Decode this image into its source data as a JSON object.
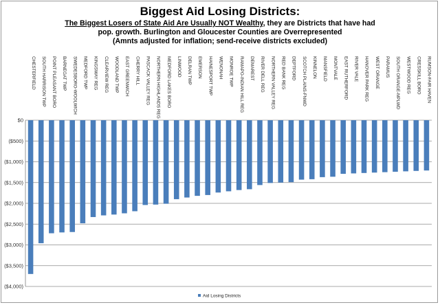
{
  "chart_data": {
    "type": "bar",
    "title": "Biggest Aid Losing Districts:",
    "subtitle_lines": [
      {
        "underlined": "The Biggest Losers of State Aid Are Usually NOT Wealthy",
        "rest": ", they are Districts that have had"
      },
      {
        "underlined": "",
        "rest": "pop. growth. Burlington and Gloucester Counties are Overrepresented"
      },
      {
        "underlined": "",
        "rest": "(Amnts adjusted for inflation; send-receive districts excluded)"
      }
    ],
    "categories": [
      "CHESTERFIELD",
      "SOUTH HARRISON TWP",
      "POINT PLEASANT BORO",
      "BARNEGAT TWP",
      "SWEDESBORO-WOOLWICH",
      "MEDFORD TWP",
      "KINGSWAY REG",
      "CLEARVIEW REG",
      "WOODLAND TWP",
      "EAST GREENWICH",
      "CHERRY HILL",
      "PASCACK VALLEY REG",
      "NORTHERN HIGHLANDS REG",
      "MEDFORD LAKES BORO",
      "LINWOOD",
      "DELRAN TWP",
      "EMERSON",
      "HAINESPORT TWP",
      "WENONAH",
      "MONROE TWP",
      "RAMAPO-INDIAN HILL REG",
      "DEMAREST",
      "RIVER DELL REG",
      "NORTHERN VALLEY REG",
      "RED BANK REG",
      "DEPTFORD",
      "SCOTCH PLAINS-FNWD",
      "KINNELON",
      "MANSFIELD",
      "MONTVALE",
      "EAST RUTHERFORD",
      "RIVER VALE",
      "HANOVER PARK REG",
      "WEST ORANGE",
      "PARAMUS",
      "SOUTH ORANGE-MPLWD",
      "WESTWOOD REG",
      "CRESSKILL BORO",
      "RUMSON-FAIR HAVEN"
    ],
    "series": [
      {
        "name": "Aid Losing Districts",
        "color": "#4a7ebb",
        "values": [
          -3700,
          -2960,
          -2720,
          -2700,
          -2690,
          -2480,
          -2330,
          -2290,
          -2270,
          -2240,
          -2190,
          -2040,
          -2030,
          -2010,
          -1900,
          -1860,
          -1820,
          -1800,
          -1740,
          -1710,
          -1680,
          -1660,
          -1560,
          -1510,
          -1500,
          -1490,
          -1430,
          -1420,
          -1370,
          -1360,
          -1290,
          -1280,
          -1270,
          -1260,
          -1250,
          -1240,
          -1230,
          -1220,
          -1210
        ]
      }
    ],
    "ylim": [
      -4000,
      0
    ],
    "yticks": [
      0,
      -500,
      -1000,
      -1500,
      -2000,
      -2500,
      -3000,
      -3500,
      -4000
    ],
    "ytick_labels": [
      "$0",
      "($500)",
      "($1,000)",
      "($1,500)",
      "($2,000)",
      "($2,500)",
      "($3,000)",
      "($3,500)",
      "($4,000)"
    ],
    "gridlines": true,
    "legend_position": "bottom-center",
    "gridline_color": "#8c8c8c"
  }
}
